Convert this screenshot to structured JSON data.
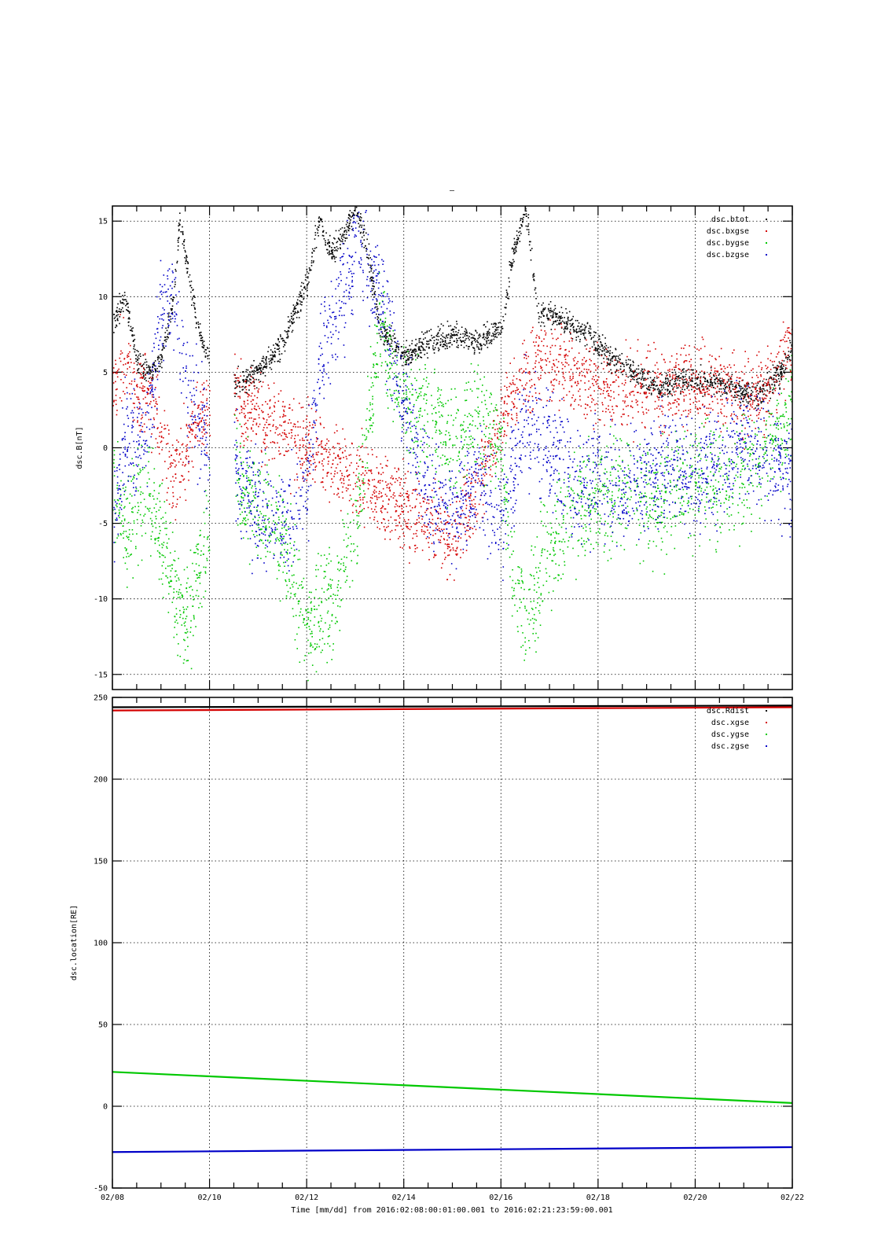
{
  "figure": {
    "title_mark": "–",
    "time_axis_label": "Time [mm/dd]  from 2016:02:08:00:01:00.001  to  2016:02:21:23:59:00.001"
  },
  "chart_data": [
    {
      "type": "scatter",
      "ylabel": "dsc.B[nT]",
      "xlabel": "",
      "ylim": [
        -16,
        16
      ],
      "yticks": [
        -15,
        -10,
        -5,
        0,
        5,
        10,
        15
      ],
      "xlim": [
        "2016-02-08",
        "2016-02-22"
      ],
      "xticks": [
        "2016-02-08",
        "2016-02-10",
        "2016-02-12",
        "2016-02-14",
        "2016-02-16",
        "2016-02-18",
        "2016-02-20",
        "2016-02-22"
      ],
      "xtick_labels": [
        "02/08",
        "02/10",
        "02/12",
        "02/14",
        "02/16",
        "02/18",
        "02/20",
        "02/22"
      ],
      "grid": true,
      "legend": "top-right",
      "data_gap": [
        "2016-02-10T00:00",
        "2016-02-10T12:00"
      ],
      "series": [
        {
          "name": "dsc.btot",
          "color": "#000000",
          "x": [
            "2016-02-08T00:00",
            "2016-02-08T06:00",
            "2016-02-08T12:00",
            "2016-02-08T18:00",
            "2016-02-09T00:00",
            "2016-02-09T06:00",
            "2016-02-09T09:00",
            "2016-02-09T14:00",
            "2016-02-09T20:00",
            "2016-02-10T00:00",
            "2016-02-10T12:00",
            "2016-02-11T00:00",
            "2016-02-11T12:00",
            "2016-02-12T00:00",
            "2016-02-12T06:00",
            "2016-02-12T12:00",
            "2016-02-12T18:00",
            "2016-02-13T00:00",
            "2016-02-13T06:00",
            "2016-02-13T12:00",
            "2016-02-14T00:00",
            "2016-02-14T12:00",
            "2016-02-15T00:00",
            "2016-02-15T12:00",
            "2016-02-16T00:00",
            "2016-02-16T06:00",
            "2016-02-16T12:00",
            "2016-02-16T18:00",
            "2016-02-17T06:00",
            "2016-02-17T18:00",
            "2016-02-18T06:00",
            "2016-02-18T18:00",
            "2016-02-19T06:00",
            "2016-02-19T18:00",
            "2016-02-20T06:00",
            "2016-02-20T18:00",
            "2016-02-21T06:00",
            "2016-02-21T18:00",
            "2016-02-22T00:00"
          ],
          "y": [
            8,
            10,
            6,
            5,
            6,
            10,
            15,
            11,
            7,
            6,
            4.2,
            5,
            7,
            11,
            15,
            13,
            14,
            16,
            13,
            8,
            6,
            7,
            7.5,
            7,
            8,
            13,
            16,
            9,
            8.5,
            7.5,
            6,
            5,
            4,
            4.5,
            4.5,
            4,
            3.5,
            5,
            7
          ]
        },
        {
          "name": "dsc.bxgse",
          "color": "#d40000",
          "x": [
            "2016-02-08T00:00",
            "2016-02-08T06:00",
            "2016-02-08T12:00",
            "2016-02-08T18:00",
            "2016-02-09T00:00",
            "2016-02-09T06:00",
            "2016-02-09T12:00",
            "2016-02-09T18:00",
            "2016-02-10T00:00",
            "2016-02-10T12:00",
            "2016-02-11T00:00",
            "2016-02-11T12:00",
            "2016-02-12T00:00",
            "2016-02-12T12:00",
            "2016-02-13T00:00",
            "2016-02-13T12:00",
            "2016-02-14T00:00",
            "2016-02-14T12:00",
            "2016-02-15T00:00",
            "2016-02-15T12:00",
            "2016-02-16T00:00",
            "2016-02-16T12:00",
            "2016-02-17T00:00",
            "2016-02-17T12:00",
            "2016-02-18T00:00",
            "2016-02-18T12:00",
            "2016-02-19T00:00",
            "2016-02-19T12:00",
            "2016-02-20T00:00",
            "2016-02-20T12:00",
            "2016-02-21T00:00",
            "2016-02-21T12:00",
            "2016-02-22T00:00"
          ],
          "y": [
            4,
            6,
            3,
            4,
            1,
            -2,
            0,
            2,
            3,
            3.5,
            2,
            1,
            0,
            -1,
            -2,
            -3,
            -4,
            -5,
            -6,
            -3,
            2,
            5,
            6,
            5,
            4,
            3.5,
            4,
            4,
            4.5,
            4,
            3,
            4,
            7
          ]
        },
        {
          "name": "dsc.bygse",
          "color": "#00c800",
          "x": [
            "2016-02-08T00:00",
            "2016-02-08T06:00",
            "2016-02-08T12:00",
            "2016-02-08T18:00",
            "2016-02-09T00:00",
            "2016-02-09T06:00",
            "2016-02-09T12:00",
            "2016-02-09T18:00",
            "2016-02-10T00:00",
            "2016-02-10T12:00",
            "2016-02-11T00:00",
            "2016-02-11T12:00",
            "2016-02-12T00:00",
            "2016-02-12T12:00",
            "2016-02-13T00:00",
            "2016-02-13T12:00",
            "2016-02-14T00:00",
            "2016-02-14T12:00",
            "2016-02-15T00:00",
            "2016-02-15T12:00",
            "2016-02-16T00:00",
            "2016-02-16T06:00",
            "2016-02-16T12:00",
            "2016-02-17T00:00",
            "2016-02-17T12:00",
            "2016-02-18T00:00",
            "2016-02-18T12:00",
            "2016-02-19T00:00",
            "2016-02-19T12:00",
            "2016-02-20T00:00",
            "2016-02-20T12:00",
            "2016-02-21T00:00",
            "2016-02-21T12:00",
            "2016-02-22T00:00"
          ],
          "y": [
            -2,
            -6,
            -4,
            -3,
            -6,
            -9,
            -12,
            -8,
            -5,
            -2,
            -4,
            -6,
            -12,
            -10,
            -5,
            8,
            3,
            2,
            0,
            2,
            0,
            -9,
            -12,
            -6,
            -4,
            -3,
            -3,
            -4,
            -3,
            -2,
            -3,
            -2,
            0,
            2
          ]
        },
        {
          "name": "dsc.bzgse",
          "color": "#0000c8",
          "x": [
            "2016-02-08T00:00",
            "2016-02-08T06:00",
            "2016-02-08T12:00",
            "2016-02-08T18:00",
            "2016-02-09T00:00",
            "2016-02-09T06:00",
            "2016-02-09T12:00",
            "2016-02-09T18:00",
            "2016-02-10T00:00",
            "2016-02-10T12:00",
            "2016-02-11T00:00",
            "2016-02-11T12:00",
            "2016-02-12T00:00",
            "2016-02-12T06:00",
            "2016-02-12T18:00",
            "2016-02-13T00:00",
            "2016-02-13T12:00",
            "2016-02-14T00:00",
            "2016-02-14T12:00",
            "2016-02-15T00:00",
            "2016-02-15T12:00",
            "2016-02-16T00:00",
            "2016-02-16T12:00",
            "2016-02-17T00:00",
            "2016-02-17T12:00",
            "2016-02-18T00:00",
            "2016-02-18T12:00",
            "2016-02-19T00:00",
            "2016-02-19T12:00",
            "2016-02-20T00:00",
            "2016-02-20T12:00",
            "2016-02-21T00:00",
            "2016-02-21T12:00",
            "2016-02-22T00:00"
          ],
          "y": [
            -6,
            1,
            0,
            2,
            9,
            10,
            4,
            2,
            0,
            -1,
            -4,
            -5,
            -3,
            6,
            10,
            14,
            10,
            3,
            -3,
            -4,
            -2,
            -5,
            2,
            0,
            -3,
            -2,
            -3,
            -2,
            -1,
            -2,
            -1,
            1,
            -1,
            -2
          ]
        }
      ]
    },
    {
      "type": "line",
      "ylabel": "dsc.location[RE]",
      "xlabel": "",
      "ylim": [
        -50,
        250
      ],
      "yticks": [
        -50,
        0,
        50,
        100,
        150,
        200,
        250
      ],
      "xlim": [
        "2016-02-08",
        "2016-02-22"
      ],
      "xticks": [
        "2016-02-08",
        "2016-02-10",
        "2016-02-12",
        "2016-02-14",
        "2016-02-16",
        "2016-02-18",
        "2016-02-20",
        "2016-02-22"
      ],
      "xtick_labels": [
        "02/08",
        "02/10",
        "02/12",
        "02/14",
        "02/16",
        "02/18",
        "02/20",
        "02/22"
      ],
      "grid": true,
      "legend": "top-right",
      "series": [
        {
          "name": "dsc.Rdist",
          "color": "#000000",
          "x": [
            "2016-02-08",
            "2016-02-22"
          ],
          "y": [
            244,
            245
          ]
        },
        {
          "name": "dsc.xgse",
          "color": "#d40000",
          "x": [
            "2016-02-08",
            "2016-02-22"
          ],
          "y": [
            242,
            244
          ]
        },
        {
          "name": "dsc.ygse",
          "color": "#00c800",
          "x": [
            "2016-02-08",
            "2016-02-22"
          ],
          "y": [
            21,
            2
          ]
        },
        {
          "name": "dsc.zgse",
          "color": "#0000c8",
          "x": [
            "2016-02-08",
            "2016-02-22"
          ],
          "y": [
            -28,
            -25
          ]
        }
      ]
    }
  ]
}
